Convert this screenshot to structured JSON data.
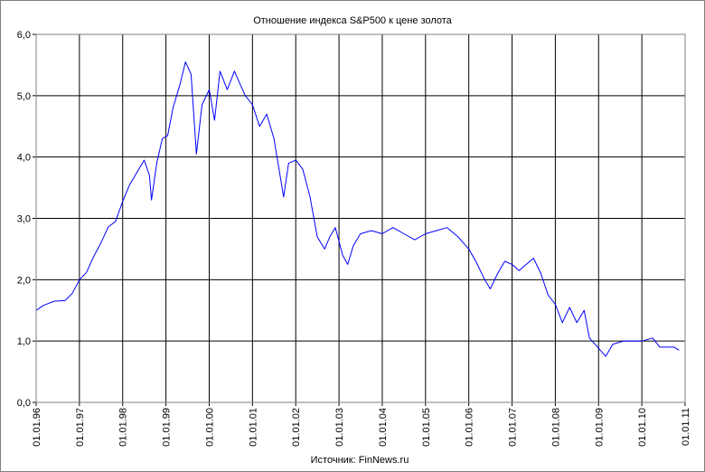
{
  "chart_data": {
    "type": "line",
    "title": "Отношение индекса S&P500 к цене золота",
    "source": "Источник: FinNews.ru",
    "xlabel": "",
    "ylabel": "",
    "ylim": [
      0,
      6
    ],
    "y_ticks": [
      "0,0",
      "1,0",
      "2,0",
      "3,0",
      "4,0",
      "5,0",
      "6,0"
    ],
    "x_ticks": [
      "01.01.96",
      "01.01.97",
      "01.01.98",
      "01.01.99",
      "01.01.00",
      "01.01.01",
      "01.01.02",
      "01.01.03",
      "01.01.04",
      "01.01.05",
      "01.01.06",
      "01.01.07",
      "01.01.08",
      "01.01.09",
      "01.01.10",
      "01.01.11"
    ],
    "xlim": [
      "1996-01-01",
      "2011-01-01"
    ],
    "grid": true,
    "legend": "none",
    "line_color": "#0000ff",
    "series": [
      {
        "values": [
          [
            "1996-01-01",
            1.5
          ],
          [
            "1996-03-01",
            1.58
          ],
          [
            "1996-06-01",
            1.65
          ],
          [
            "1996-09-01",
            1.66
          ],
          [
            "1996-11-01",
            1.78
          ],
          [
            "1997-01-01",
            2.0
          ],
          [
            "1997-03-01",
            2.12
          ],
          [
            "1997-05-01",
            2.38
          ],
          [
            "1997-07-01",
            2.6
          ],
          [
            "1997-09-01",
            2.86
          ],
          [
            "1997-11-01",
            2.95
          ],
          [
            "1998-01-01",
            3.28
          ],
          [
            "1998-03-01",
            3.55
          ],
          [
            "1998-05-01",
            3.75
          ],
          [
            "1998-07-01",
            3.95
          ],
          [
            "1998-08-15",
            3.7
          ],
          [
            "1998-09-01",
            3.3
          ],
          [
            "1998-10-15",
            3.9
          ],
          [
            "1998-12-01",
            4.3
          ],
          [
            "1999-01-15",
            4.35
          ],
          [
            "1999-03-01",
            4.8
          ],
          [
            "1999-05-01",
            5.2
          ],
          [
            "1999-06-15",
            5.55
          ],
          [
            "1999-08-01",
            5.35
          ],
          [
            "1999-09-15",
            4.05
          ],
          [
            "1999-11-01",
            4.85
          ],
          [
            "2000-01-01",
            5.1
          ],
          [
            "2000-02-15",
            4.6
          ],
          [
            "2000-04-01",
            5.4
          ],
          [
            "2000-06-01",
            5.1
          ],
          [
            "2000-08-01",
            5.4
          ],
          [
            "2000-09-15",
            5.2
          ],
          [
            "2000-11-01",
            5.0
          ],
          [
            "2001-01-01",
            4.85
          ],
          [
            "2001-03-01",
            4.5
          ],
          [
            "2001-05-01",
            4.7
          ],
          [
            "2001-07-01",
            4.3
          ],
          [
            "2001-09-20",
            3.35
          ],
          [
            "2001-11-01",
            3.9
          ],
          [
            "2002-01-01",
            3.95
          ],
          [
            "2002-03-01",
            3.8
          ],
          [
            "2002-05-01",
            3.35
          ],
          [
            "2002-07-01",
            2.7
          ],
          [
            "2002-09-01",
            2.5
          ],
          [
            "2002-10-15",
            2.7
          ],
          [
            "2002-12-01",
            2.85
          ],
          [
            "2003-02-01",
            2.4
          ],
          [
            "2003-03-15",
            2.25
          ],
          [
            "2003-05-01",
            2.55
          ],
          [
            "2003-07-01",
            2.75
          ],
          [
            "2003-10-01",
            2.8
          ],
          [
            "2004-01-01",
            2.75
          ],
          [
            "2004-04-01",
            2.85
          ],
          [
            "2004-07-01",
            2.75
          ],
          [
            "2004-10-01",
            2.65
          ],
          [
            "2005-01-01",
            2.75
          ],
          [
            "2005-04-01",
            2.8
          ],
          [
            "2005-07-01",
            2.85
          ],
          [
            "2005-10-01",
            2.7
          ],
          [
            "2006-01-01",
            2.5
          ],
          [
            "2006-03-01",
            2.3
          ],
          [
            "2006-05-15",
            2.0
          ],
          [
            "2006-07-01",
            1.85
          ],
          [
            "2006-09-01",
            2.1
          ],
          [
            "2006-11-01",
            2.3
          ],
          [
            "2007-01-01",
            2.25
          ],
          [
            "2007-03-01",
            2.15
          ],
          [
            "2007-05-01",
            2.25
          ],
          [
            "2007-07-01",
            2.35
          ],
          [
            "2007-09-01",
            2.1
          ],
          [
            "2007-11-01",
            1.75
          ],
          [
            "2008-01-01",
            1.6
          ],
          [
            "2008-03-01",
            1.3
          ],
          [
            "2008-05-01",
            1.55
          ],
          [
            "2008-07-01",
            1.3
          ],
          [
            "2008-09-01",
            1.5
          ],
          [
            "2008-10-15",
            1.05
          ],
          [
            "2008-12-01",
            0.95
          ],
          [
            "2009-03-01",
            0.75
          ],
          [
            "2009-05-01",
            0.95
          ],
          [
            "2009-08-01",
            1.0
          ],
          [
            "2009-11-01",
            1.0
          ],
          [
            "2010-01-01",
            1.0
          ],
          [
            "2010-04-01",
            1.05
          ],
          [
            "2010-06-01",
            0.9
          ],
          [
            "2010-08-01",
            0.9
          ],
          [
            "2010-10-01",
            0.9
          ],
          [
            "2010-11-10",
            0.85
          ]
        ]
      }
    ]
  }
}
